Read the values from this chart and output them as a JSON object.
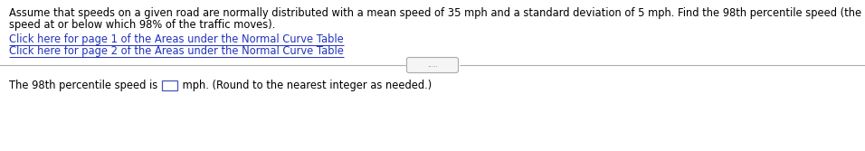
{
  "background_color": "#ffffff",
  "main_text_line1": "Assume that speeds on a given road are normally distributed with a mean speed of 35 mph and a standard deviation of 5 mph. Find the 98th percentile speed (the",
  "main_text_line2": "speed at or below which 98% of the traffic moves).",
  "link1": "Click here for page 1 of the Areas under the Normal Curve Table",
  "link2": "Click here for page 2 of the Areas under the Normal Curve Table",
  "divider_dots": ".....",
  "bottom_text_before_box": "The 98th percentile speed is ",
  "bottom_text_after_box": " mph. (Round to the nearest integer as needed.)",
  "text_color": "#000000",
  "link_color": "#2233bb",
  "font_size": 8.3,
  "fig_width": 9.56,
  "fig_height": 1.67,
  "dpi": 100
}
